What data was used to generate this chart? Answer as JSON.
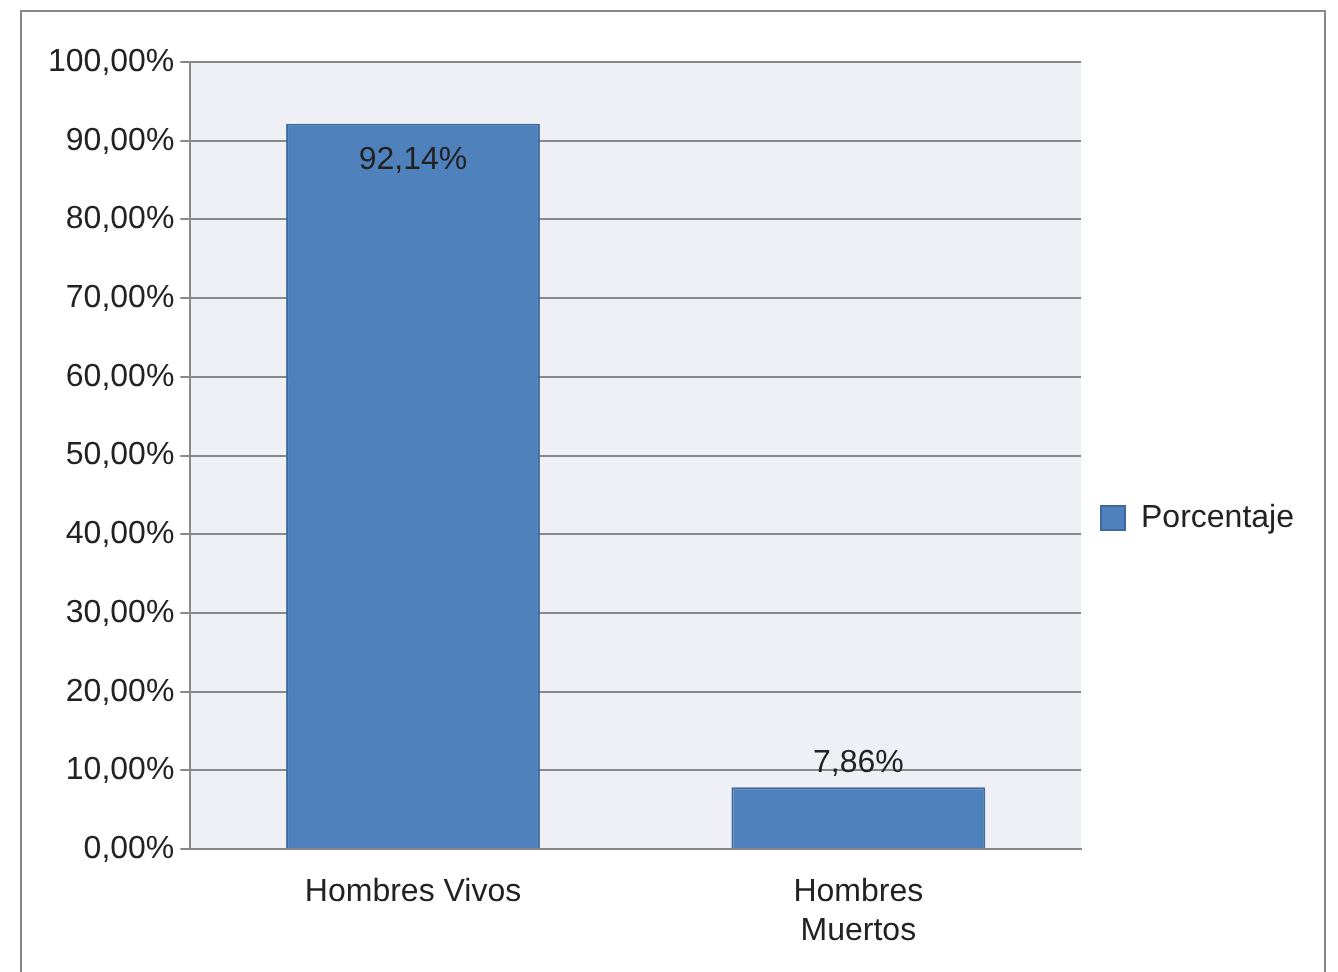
{
  "chart_data": {
    "type": "bar",
    "categories": [
      "Hombres Vivos",
      "Hombres Muertos"
    ],
    "series": [
      {
        "name": "Porcentaje",
        "color": "#4f81bd",
        "values": [
          92.14,
          7.86
        ],
        "value_labels": [
          "92,14%",
          "7,86%"
        ]
      }
    ],
    "ylim": [
      0,
      100
    ],
    "yticks": [
      {
        "value": 0,
        "label": "0,00%"
      },
      {
        "value": 10,
        "label": "10,00%"
      },
      {
        "value": 20,
        "label": "20,00%"
      },
      {
        "value": 30,
        "label": "30,00%"
      },
      {
        "value": 40,
        "label": "40,00%"
      },
      {
        "value": 50,
        "label": "50,00%"
      },
      {
        "value": 60,
        "label": "60,00%"
      },
      {
        "value": 70,
        "label": "70,00%"
      },
      {
        "value": 80,
        "label": "80,00%"
      },
      {
        "value": 90,
        "label": "90,00%"
      },
      {
        "value": 100,
        "label": "100,00%"
      }
    ],
    "grid": "y",
    "legend": "right"
  }
}
